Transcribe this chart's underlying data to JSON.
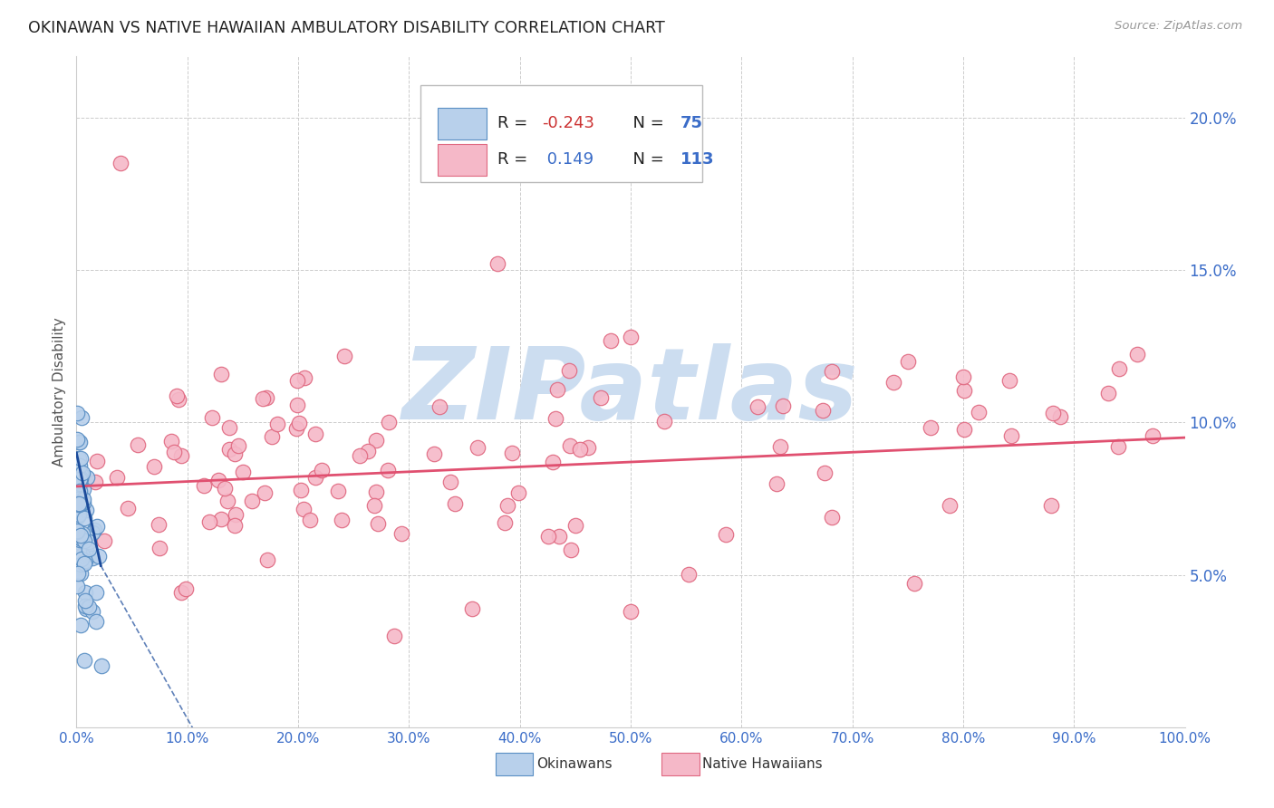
{
  "title": "OKINAWAN VS NATIVE HAWAIIAN AMBULATORY DISABILITY CORRELATION CHART",
  "source": "Source: ZipAtlas.com",
  "ylabel": "Ambulatory Disability",
  "yticks": [
    0.0,
    0.05,
    0.1,
    0.15,
    0.2
  ],
  "ytick_labels": [
    "",
    "5.0%",
    "10.0%",
    "15.0%",
    "20.0%"
  ],
  "xticks": [
    0.0,
    0.1,
    0.2,
    0.3,
    0.4,
    0.5,
    0.6,
    0.7,
    0.8,
    0.9,
    1.0
  ],
  "xtick_labels": [
    "0.0%",
    "10.0%",
    "20.0%",
    "30.0%",
    "40.0%",
    "50.0%",
    "60.0%",
    "70.0%",
    "80.0%",
    "90.0%",
    "100.0%"
  ],
  "xlim": [
    0.0,
    1.0
  ],
  "ylim": [
    0.0,
    0.22
  ],
  "okinawan_R": -0.243,
  "okinawan_N": 75,
  "hawaiian_R": 0.149,
  "hawaiian_N": 113,
  "legend_label_1": "Okinawans",
  "legend_label_2": "Native Hawaiians",
  "dot_color_okinawan": "#b8d0eb",
  "dot_color_hawaiian": "#f5b8c8",
  "dot_edgecolor_okinawan": "#5a8fc4",
  "dot_edgecolor_hawaiian": "#e06880",
  "line_color_okinawan": "#1a4a9a",
  "line_color_hawaiian": "#e05070",
  "background_color": "#ffffff",
  "title_color": "#222222",
  "tick_color": "#3a6cc8",
  "grid_color": "#cccccc",
  "legend_text_color": "#3a6cc8",
  "legend_R_color": "#cc3333",
  "watermark_color": "#ccddf0"
}
